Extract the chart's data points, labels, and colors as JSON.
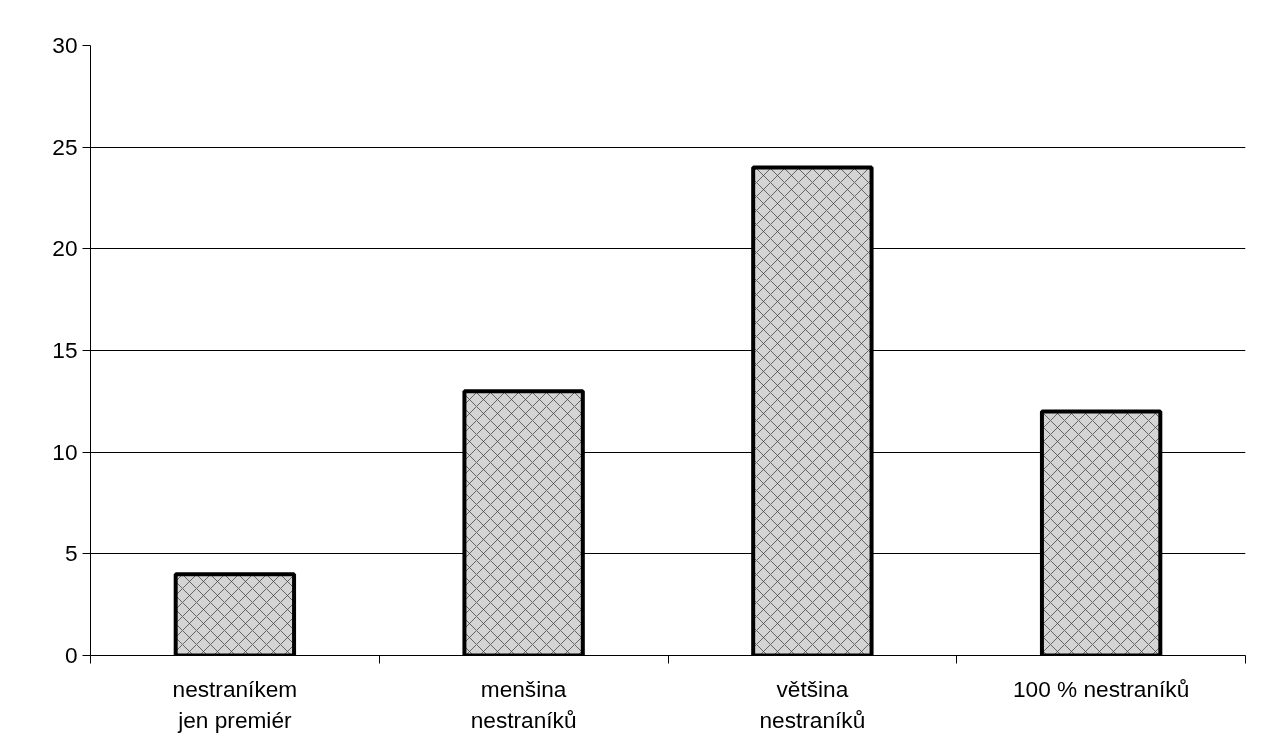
{
  "chart_data": {
    "type": "bar",
    "categories": [
      "nestraníkem\njen premiér",
      "menšina\nnestraníků",
      "většina\nnestraníků",
      "100 % nestraníků"
    ],
    "values": [
      4,
      13,
      24,
      12
    ],
    "color": "#d4d4d4",
    "ylim": [
      0,
      30
    ],
    "yticks": [
      0,
      5,
      10,
      15,
      20,
      25,
      30
    ],
    "grid": "y"
  }
}
